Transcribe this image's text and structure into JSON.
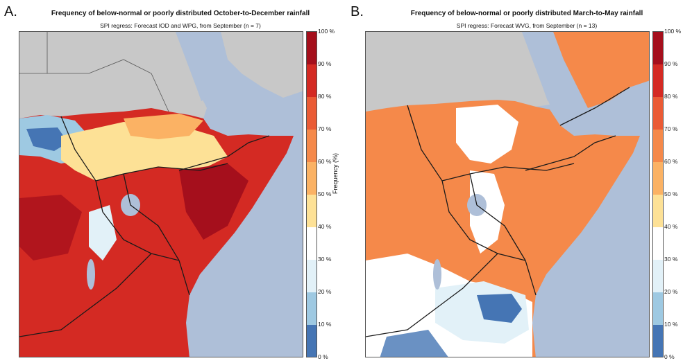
{
  "figure": {
    "panels": [
      {
        "letter": "A.",
        "title": "Frequency of below-normal or poorly distributed October-to-December rainfall",
        "subtitle": "SPI regress: Forecast IOD and WPG, from September (n = 7)",
        "dominant_color": "#d62a22",
        "secondary_color": "#f7b45c"
      },
      {
        "letter": "B.",
        "title": "Frequency of below-normal or poorly distributed March-to-May rainfall",
        "subtitle": "SPI regress: Forecast WVG, from September (n = 13)",
        "dominant_color": "#f0823c",
        "secondary_color": "#ffffff"
      }
    ],
    "legend": {
      "axis_label": "Frequency (%)",
      "ticks": [
        "100 %",
        "90 %",
        "80 %",
        "70 %",
        "60 %",
        "50 %",
        "40 %",
        "30 %",
        "20 %",
        "10 %",
        "0 %"
      ],
      "bins": [
        {
          "range": "90-100",
          "color": "#a50f1c"
        },
        {
          "range": "80-90",
          "color": "#d42a23"
        },
        {
          "range": "70-80",
          "color": "#ea5b35"
        },
        {
          "range": "60-70",
          "color": "#f5894a"
        },
        {
          "range": "50-60",
          "color": "#fbb264"
        },
        {
          "range": "40-50",
          "color": "#fde196"
        },
        {
          "range": "30-40",
          "color": "#ffffff"
        },
        {
          "range": "20-30",
          "color": "#e2f1f8"
        },
        {
          "range": "10-20",
          "color": "#9ec9e2"
        },
        {
          "range": "0-10",
          "color": "#4575b4"
        }
      ]
    },
    "colors": {
      "ocean": "#aebfd8",
      "land_masked": "#c8c8c8",
      "border": "#1a1a1a"
    }
  }
}
